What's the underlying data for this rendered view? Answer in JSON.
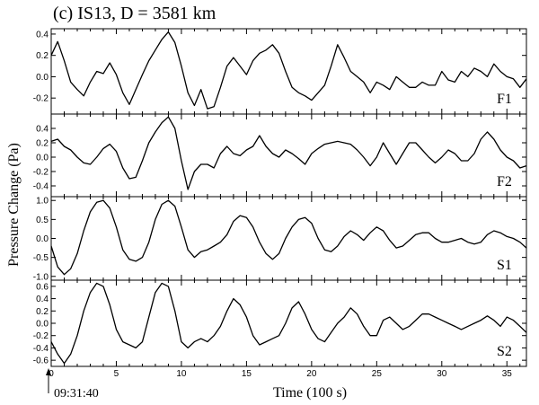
{
  "chart_data": {
    "type": "line",
    "title": "(c) IS13, D = 3581 km",
    "xlabel": "Time (100 s)",
    "ylabel": "Pressure Change (Pa)",
    "start_annotation": "09:31:40",
    "x_ticks": [
      "0",
      "5",
      "10",
      "15",
      "20",
      "25",
      "30",
      "35"
    ],
    "xlim": [
      0,
      36.5
    ],
    "panels": [
      {
        "name": "F1",
        "ylim": [
          -0.35,
          0.45
        ],
        "y_ticks": [
          "0.4",
          "0.2",
          "0.0",
          "-0.2"
        ],
        "y_tick_values": [
          0.4,
          0.2,
          0.0,
          -0.2
        ],
        "x": [
          0,
          0.5,
          1,
          1.5,
          2,
          2.5,
          3,
          3.5,
          4,
          4.5,
          5,
          5.5,
          6,
          6.5,
          7,
          7.5,
          8,
          8.5,
          9,
          9.5,
          10,
          10.5,
          11,
          11.5,
          12,
          12.5,
          13,
          13.5,
          14,
          14.5,
          15,
          15.5,
          16,
          16.5,
          17,
          17.5,
          18,
          18.5,
          19,
          19.5,
          20,
          20.5,
          21,
          21.5,
          22,
          22.5,
          23,
          23.5,
          24,
          24.5,
          25,
          25.5,
          26,
          26.5,
          27,
          27.5,
          28,
          28.5,
          29,
          29.5,
          30,
          30.5,
          31,
          31.5,
          32,
          32.5,
          33,
          33.5,
          34,
          34.5,
          35,
          35.5,
          36,
          36.5
        ],
        "y": [
          0.2,
          0.33,
          0.15,
          -0.05,
          -0.12,
          -0.18,
          -0.05,
          0.05,
          0.03,
          0.13,
          0.02,
          -0.15,
          -0.26,
          -0.12,
          0.02,
          0.15,
          0.25,
          0.35,
          0.42,
          0.32,
          0.1,
          -0.15,
          -0.27,
          -0.12,
          -0.3,
          -0.28,
          -0.1,
          0.1,
          0.18,
          0.1,
          0.02,
          0.15,
          0.22,
          0.25,
          0.3,
          0.22,
          0.05,
          -0.1,
          -0.15,
          -0.18,
          -0.22,
          -0.15,
          -0.08,
          0.1,
          0.3,
          0.18,
          0.05,
          0.0,
          -0.05,
          -0.15,
          -0.05,
          -0.08,
          -0.12,
          0.0,
          -0.05,
          -0.1,
          -0.1,
          -0.05,
          -0.08,
          -0.08,
          0.05,
          -0.03,
          -0.05,
          0.05,
          0.0,
          0.08,
          0.05,
          0.0,
          0.12,
          0.05,
          0.0,
          -0.02,
          -0.1,
          -0.02
        ]
      },
      {
        "name": "F2",
        "ylim": [
          -0.55,
          0.6
        ],
        "y_ticks": [
          "0.4",
          "0.2",
          "0.0",
          "-0.2",
          "-0.4"
        ],
        "y_tick_values": [
          0.4,
          0.2,
          0.0,
          -0.2,
          -0.4
        ],
        "x": [
          0,
          0.5,
          1,
          1.5,
          2,
          2.5,
          3,
          3.5,
          4,
          4.5,
          5,
          5.5,
          6,
          6.5,
          7,
          7.5,
          8,
          8.5,
          9,
          9.5,
          10,
          10.5,
          11,
          11.5,
          12,
          12.5,
          13,
          13.5,
          14,
          14.5,
          15,
          15.5,
          16,
          16.5,
          17,
          17.5,
          18,
          18.5,
          19,
          19.5,
          20,
          20.5,
          21,
          21.5,
          22,
          22.5,
          23,
          23.5,
          24,
          24.5,
          25,
          25.5,
          26,
          26.5,
          27,
          27.5,
          28,
          28.5,
          29,
          29.5,
          30,
          30.5,
          31,
          31.5,
          32,
          32.5,
          33,
          33.5,
          34,
          34.5,
          35,
          35.5,
          36,
          36.5
        ],
        "y": [
          0.22,
          0.25,
          0.15,
          0.1,
          0.0,
          -0.08,
          -0.1,
          0.0,
          0.12,
          0.18,
          0.08,
          -0.15,
          -0.3,
          -0.28,
          -0.05,
          0.2,
          0.35,
          0.48,
          0.56,
          0.4,
          -0.05,
          -0.45,
          -0.2,
          -0.1,
          -0.1,
          -0.15,
          0.05,
          0.15,
          0.05,
          0.02,
          0.1,
          0.15,
          0.3,
          0.15,
          0.05,
          0.0,
          0.1,
          0.05,
          -0.02,
          -0.1,
          0.05,
          0.12,
          0.18,
          0.2,
          0.22,
          0.2,
          0.18,
          0.1,
          0.0,
          -0.12,
          0.0,
          0.2,
          0.05,
          -0.1,
          0.05,
          0.2,
          0.2,
          0.1,
          0.0,
          -0.08,
          0.0,
          0.1,
          0.05,
          -0.05,
          -0.05,
          0.05,
          0.25,
          0.35,
          0.25,
          0.1,
          0.0,
          -0.05,
          -0.15,
          -0.12
        ]
      },
      {
        "name": "S1",
        "ylim": [
          -1.1,
          1.1
        ],
        "y_ticks": [
          "1.0",
          "0.5",
          "0.0",
          "-0.5",
          "-1.0"
        ],
        "y_tick_values": [
          1.0,
          0.5,
          0.0,
          -0.5,
          -1.0
        ],
        "x": [
          0,
          0.5,
          1,
          1.5,
          2,
          2.5,
          3,
          3.5,
          4,
          4.5,
          5,
          5.5,
          6,
          6.5,
          7,
          7.5,
          8,
          8.5,
          9,
          9.5,
          10,
          10.5,
          11,
          11.5,
          12,
          12.5,
          13,
          13.5,
          14,
          14.5,
          15,
          15.5,
          16,
          16.5,
          17,
          17.5,
          18,
          18.5,
          19,
          19.5,
          20,
          20.5,
          21,
          21.5,
          22,
          22.5,
          23,
          23.5,
          24,
          24.5,
          25,
          25.5,
          26,
          26.5,
          27,
          27.5,
          28,
          28.5,
          29,
          29.5,
          30,
          30.5,
          31,
          31.5,
          32,
          32.5,
          33,
          33.5,
          34,
          34.5,
          35,
          35.5,
          36,
          36.5
        ],
        "y": [
          -0.2,
          -0.75,
          -0.95,
          -0.8,
          -0.4,
          0.2,
          0.7,
          0.95,
          1.0,
          0.8,
          0.3,
          -0.3,
          -0.55,
          -0.6,
          -0.5,
          -0.1,
          0.5,
          0.9,
          1.0,
          0.85,
          0.3,
          -0.3,
          -0.5,
          -0.35,
          -0.3,
          -0.2,
          -0.1,
          0.1,
          0.45,
          0.6,
          0.55,
          0.3,
          -0.1,
          -0.4,
          -0.55,
          -0.4,
          0.0,
          0.3,
          0.5,
          0.55,
          0.4,
          0.0,
          -0.3,
          -0.35,
          -0.2,
          0.05,
          0.2,
          0.1,
          -0.05,
          0.15,
          0.3,
          0.2,
          -0.05,
          -0.25,
          -0.2,
          -0.05,
          0.1,
          0.15,
          0.15,
          0.0,
          -0.1,
          -0.1,
          -0.05,
          0.0,
          -0.1,
          -0.15,
          -0.1,
          0.1,
          0.2,
          0.15,
          0.05,
          0.0,
          -0.1,
          -0.25
        ]
      },
      {
        "name": "S2",
        "ylim": [
          -0.7,
          0.7
        ],
        "y_ticks": [
          "0.6",
          "0.4",
          "0.2",
          "0.0",
          "-0.2",
          "-0.4",
          "-0.6"
        ],
        "y_tick_values": [
          0.6,
          0.4,
          0.2,
          0.0,
          -0.2,
          -0.4,
          -0.6
        ],
        "x": [
          0,
          0.5,
          1,
          1.5,
          2,
          2.5,
          3,
          3.5,
          4,
          4.5,
          5,
          5.5,
          6,
          6.5,
          7,
          7.5,
          8,
          8.5,
          9,
          9.5,
          10,
          10.5,
          11,
          11.5,
          12,
          12.5,
          13,
          13.5,
          14,
          14.5,
          15,
          15.5,
          16,
          16.5,
          17,
          17.5,
          18,
          18.5,
          19,
          19.5,
          20,
          20.5,
          21,
          21.5,
          22,
          22.5,
          23,
          23.5,
          24,
          24.5,
          25,
          25.5,
          26,
          26.5,
          27,
          27.5,
          28,
          28.5,
          29,
          29.5,
          30,
          30.5,
          31,
          31.5,
          32,
          32.5,
          33,
          33.5,
          34,
          34.5,
          35,
          35.5,
          36,
          36.5
        ],
        "y": [
          -0.3,
          -0.5,
          -0.65,
          -0.5,
          -0.2,
          0.2,
          0.5,
          0.65,
          0.6,
          0.3,
          -0.1,
          -0.3,
          -0.35,
          -0.4,
          -0.3,
          0.1,
          0.5,
          0.65,
          0.6,
          0.2,
          -0.3,
          -0.4,
          -0.3,
          -0.25,
          -0.3,
          -0.2,
          -0.05,
          0.2,
          0.4,
          0.3,
          0.1,
          -0.2,
          -0.35,
          -0.3,
          -0.25,
          -0.2,
          0.0,
          0.25,
          0.35,
          0.15,
          -0.1,
          -0.25,
          -0.3,
          -0.15,
          0.0,
          0.1,
          0.25,
          0.15,
          -0.05,
          -0.2,
          -0.2,
          0.05,
          0.1,
          0.0,
          -0.1,
          -0.05,
          0.05,
          0.15,
          0.15,
          0.1,
          0.05,
          0.0,
          -0.05,
          -0.1,
          -0.05,
          0.0,
          0.05,
          0.12,
          0.05,
          -0.05,
          0.1,
          0.05,
          -0.05,
          -0.15
        ]
      }
    ]
  }
}
